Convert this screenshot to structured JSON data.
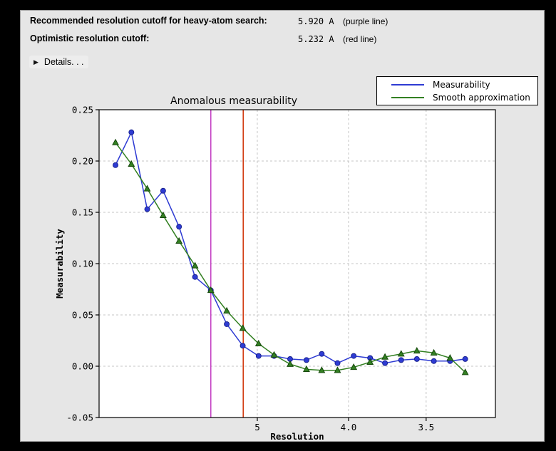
{
  "window": {
    "background": "#000000",
    "panel_background": "#e6e6e6"
  },
  "header": {
    "rows": [
      {
        "label": "Recommended resolution cutoff for heavy-atom search:",
        "value": "5.920 A",
        "note": "(purple line)"
      },
      {
        "label": "Optimistic resolution cutoff:",
        "value": "5.232 A",
        "note": "(red line)"
      }
    ],
    "details_label": "Details. . ."
  },
  "chart_data": {
    "type": "line",
    "title": "Anomalous measurability",
    "xlabel": "Resolution",
    "ylabel": "Measurability",
    "grid": true,
    "legend_position": "top-right",
    "x_axis": {
      "scale": "reversed resolution (A), linear in 1/d^2",
      "ticks": [
        {
          "d": 5.0,
          "label": "5"
        },
        {
          "d": 4.0,
          "label": "4.0"
        },
        {
          "d": 3.5,
          "label": "3.5"
        }
      ]
    },
    "y_axis": {
      "min": -0.05,
      "max": 0.25,
      "ticks": [
        {
          "v": 0.25,
          "label": "0.25"
        },
        {
          "v": 0.2,
          "label": "0.20"
        },
        {
          "v": 0.15,
          "label": "0.15"
        },
        {
          "v": 0.1,
          "label": "0.10"
        },
        {
          "v": 0.05,
          "label": "0.05"
        },
        {
          "v": 0.0,
          "label": "0.00"
        },
        {
          "v": -0.05,
          "label": "-0.05"
        }
      ]
    },
    "resolution_A": [
      14.1,
      10.57,
      8.82,
      7.72,
      6.95,
      6.37,
      5.92,
      5.55,
      5.24,
      4.98,
      4.76,
      4.56,
      4.38,
      4.23,
      4.09,
      3.96,
      3.84,
      3.74,
      3.64,
      3.55,
      3.46,
      3.38,
      3.31
    ],
    "series": [
      {
        "name": "Measurability",
        "color": "#2e3bd3",
        "marker": "circle",
        "marker_edge": "#1a2390",
        "values": [
          0.196,
          0.228,
          0.153,
          0.171,
          0.136,
          0.087,
          0.074,
          0.041,
          0.02,
          0.01,
          0.01,
          0.007,
          0.006,
          0.012,
          0.003,
          0.01,
          0.008,
          0.003,
          0.006,
          0.007,
          0.005,
          0.005,
          0.007
        ]
      },
      {
        "name": "Smooth approximation",
        "color": "#338022",
        "marker": "triangle-up",
        "marker_edge": "#17490d",
        "values": [
          0.218,
          0.197,
          0.173,
          0.147,
          0.122,
          0.098,
          0.074,
          0.054,
          0.037,
          0.022,
          0.011,
          0.002,
          -0.003,
          -0.004,
          -0.004,
          -0.001,
          0.004,
          0.009,
          0.012,
          0.015,
          0.013,
          0.008,
          -0.006
        ]
      }
    ],
    "cutoff_lines": [
      {
        "resolution_A": 5.92,
        "color": "#c441c4",
        "name": "purple line"
      },
      {
        "resolution_A": 5.232,
        "color": "#d23a10",
        "name": "red line"
      }
    ]
  }
}
